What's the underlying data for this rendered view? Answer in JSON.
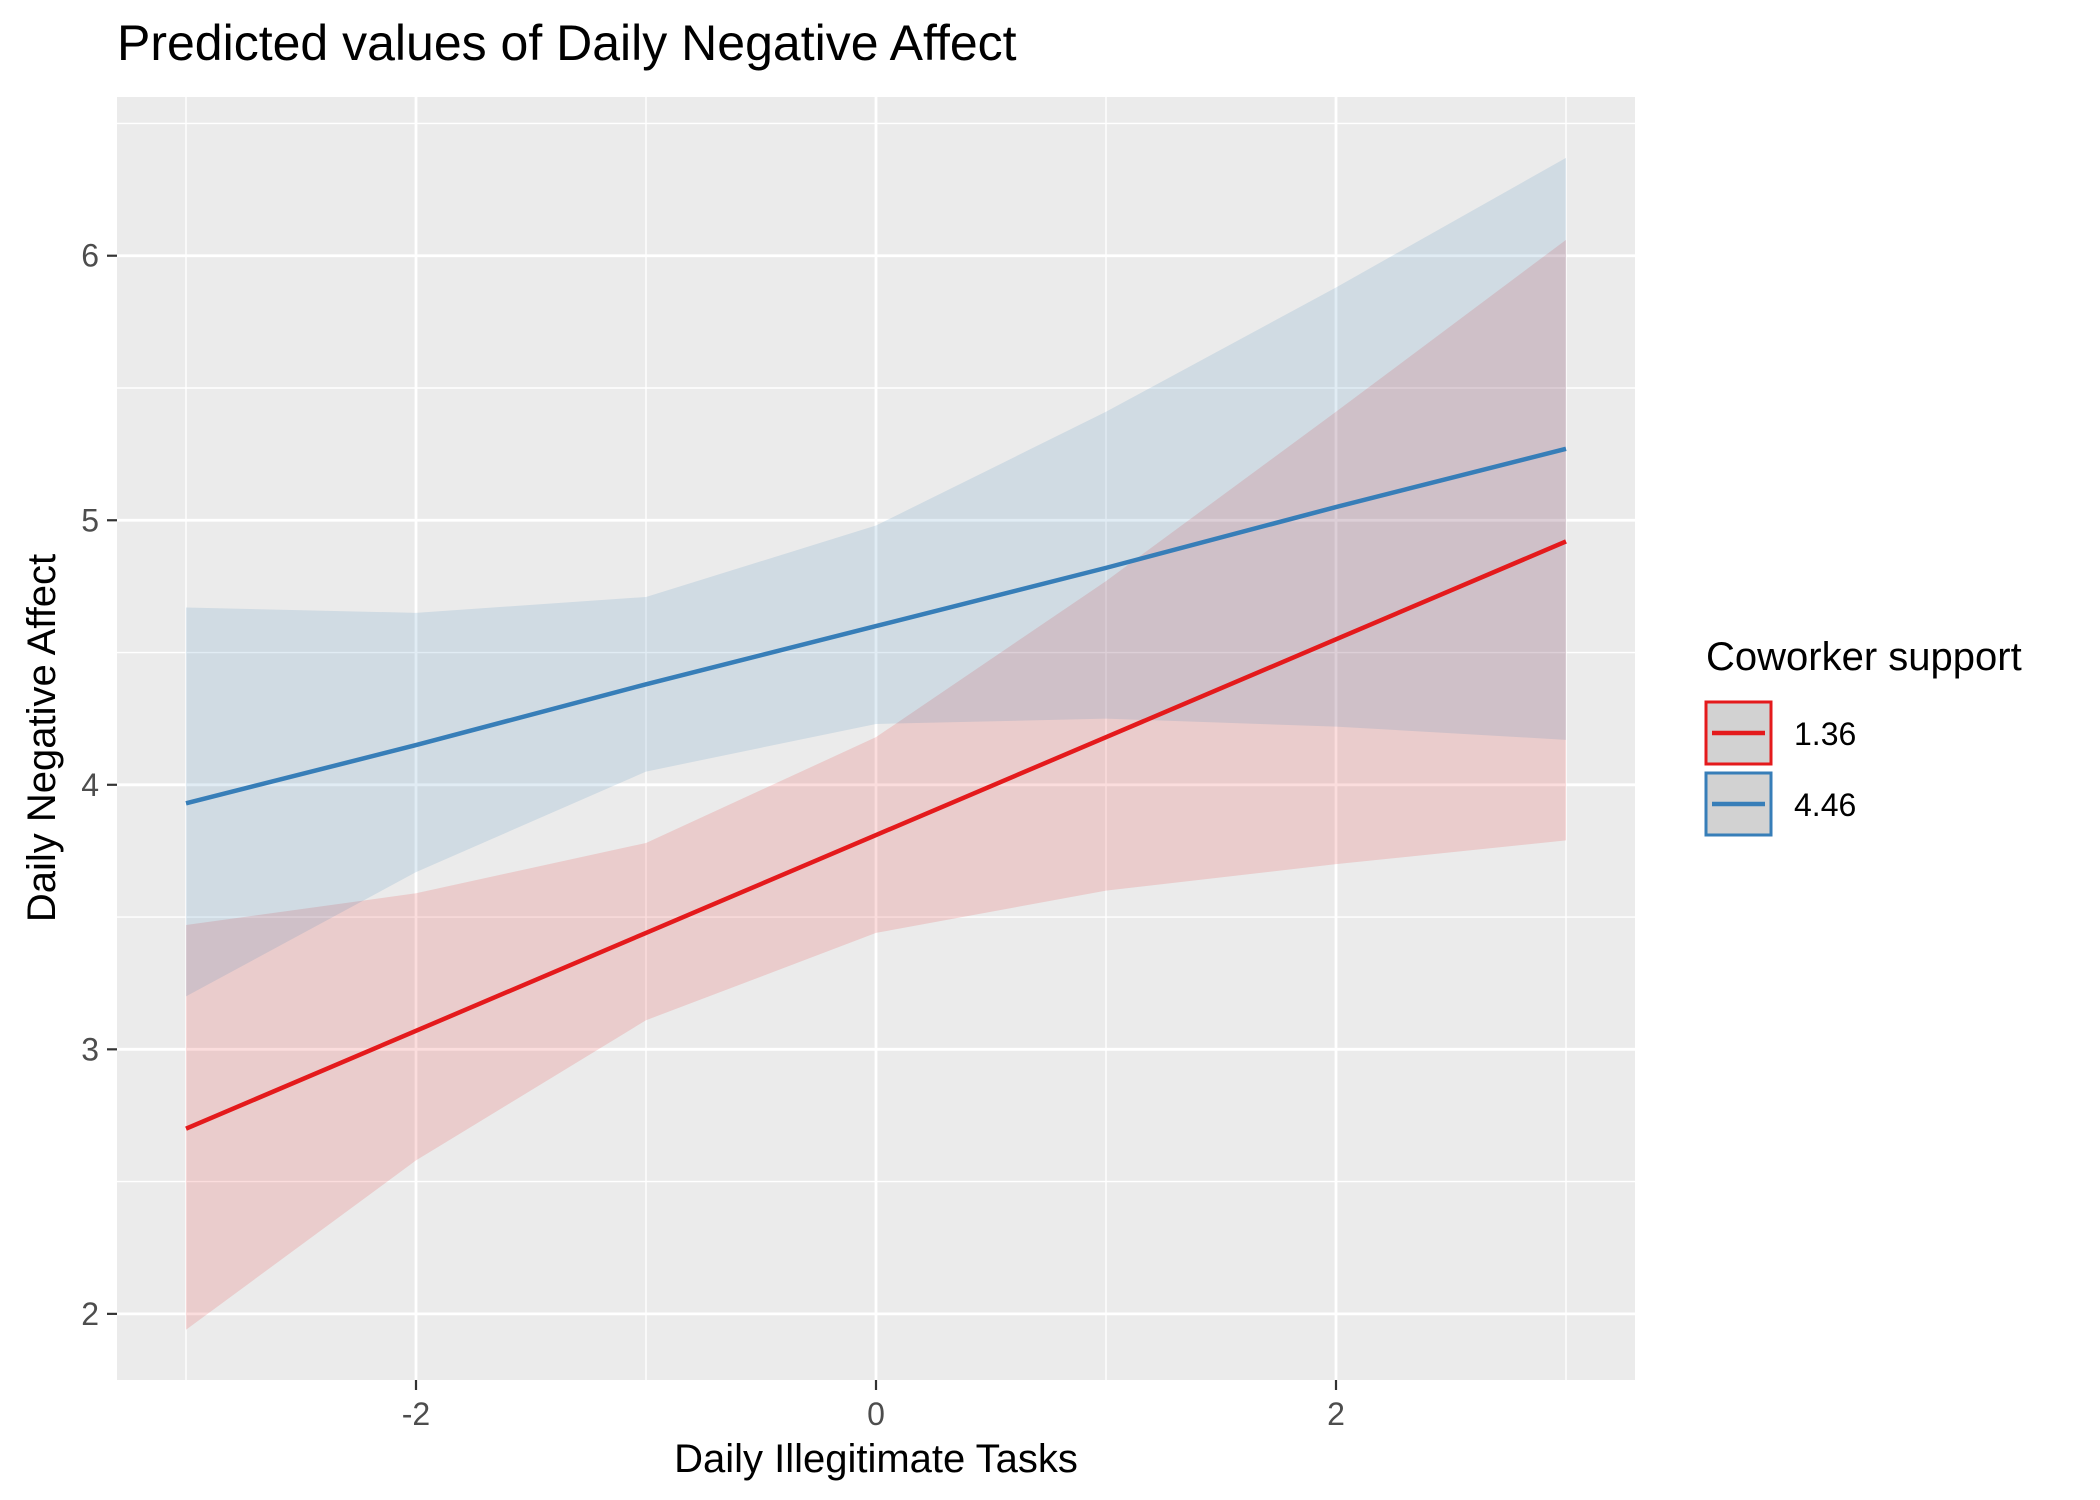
{
  "chart_data": {
    "type": "line",
    "title": "Predicted values of Daily Negative Affect",
    "xlabel": "Daily Illegitimate Tasks",
    "ylabel": "Daily Negative Affect",
    "xlim": [
      -3.3,
      3.3
    ],
    "ylim": [
      1.75,
      6.6
    ],
    "x_ticks": [
      -2,
      0,
      2
    ],
    "x_tick_labels": [
      "-2",
      "0",
      "2"
    ],
    "y_ticks": [
      2,
      3,
      4,
      5,
      6
    ],
    "y_tick_labels": [
      "2",
      "3",
      "4",
      "5",
      "6"
    ],
    "grid": true,
    "legend": {
      "title": "Coworker support",
      "position": "right"
    },
    "x": [
      -3,
      -2,
      -1,
      0,
      1,
      2,
      3
    ],
    "series": [
      {
        "name": "1.36",
        "color": "#e41a1c",
        "values": [
          2.7,
          3.07,
          3.44,
          3.81,
          4.18,
          4.55,
          4.92
        ],
        "lower": [
          1.94,
          2.58,
          3.11,
          3.44,
          3.6,
          3.7,
          3.79
        ],
        "upper": [
          3.47,
          3.59,
          3.78,
          4.18,
          4.77,
          5.41,
          6.06
        ]
      },
      {
        "name": "4.46",
        "color": "#377eb8",
        "values": [
          3.93,
          4.15,
          4.38,
          4.6,
          4.82,
          5.05,
          5.27
        ],
        "lower": [
          3.2,
          3.67,
          4.05,
          4.23,
          4.25,
          4.22,
          4.17
        ],
        "upper": [
          4.67,
          4.65,
          4.71,
          4.98,
          5.41,
          5.88,
          6.37
        ]
      }
    ]
  }
}
